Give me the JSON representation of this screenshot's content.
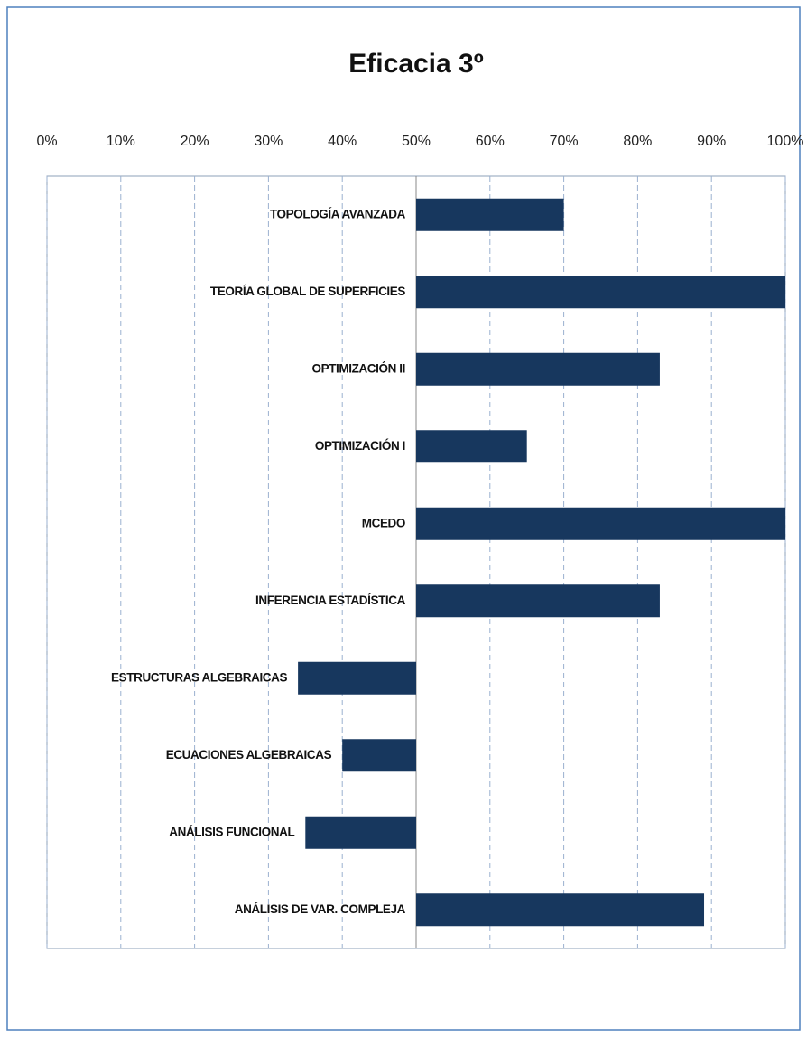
{
  "chart_data": {
    "type": "bar",
    "orientation": "horizontal",
    "title": "Eficacia 3º",
    "categories": [
      "TOPOLOGÍA AVANZADA",
      "TEORÍA GLOBAL DE SUPERFICIES",
      "OPTIMIZACIÓN II",
      "OPTIMIZACIÓN I",
      "MCEDO",
      "INFERENCIA ESTADÍSTICA",
      "ESTRUCTURAS ALGEBRAICAS",
      "ECUACIONES ALGEBRAICAS",
      "ANÁLISIS FUNCIONAL",
      "ANÁLISIS DE VAR. COMPLEJA"
    ],
    "values": [
      70,
      100,
      83,
      65,
      100,
      83,
      34,
      40,
      35,
      89
    ],
    "color": "#17375e",
    "bar_base": 50,
    "xlim": [
      0,
      100
    ],
    "xticks": [
      {
        "value": 0,
        "label": "0%"
      },
      {
        "value": 10,
        "label": "10%"
      },
      {
        "value": 20,
        "label": "20%"
      },
      {
        "value": 30,
        "label": "30%"
      },
      {
        "value": 40,
        "label": "40%"
      },
      {
        "value": 50,
        "label": "50%"
      },
      {
        "value": 60,
        "label": "60%"
      },
      {
        "value": 70,
        "label": "70%"
      },
      {
        "value": 80,
        "label": "80%"
      },
      {
        "value": 90,
        "label": "90%"
      },
      {
        "value": 100,
        "label": "100%"
      }
    ],
    "grid": true
  }
}
